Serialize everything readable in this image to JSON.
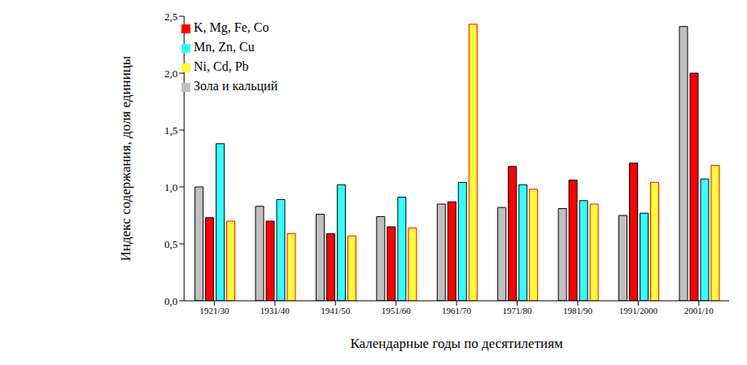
{
  "chart_data": {
    "type": "bar",
    "x_label": "Календарные годы по десятилетиям",
    "y_label": "Индекс  содержания, доля единицы",
    "categories": [
      "1921/30",
      "1931/40",
      "1941/50",
      "1951/60",
      "1961/70",
      "1971/80",
      "1981/90",
      "1991/2000",
      "2001/10"
    ],
    "series": [
      {
        "name": "Зола и кальций",
        "color": "#c0c0c0",
        "values": [
          1.0,
          0.83,
          0.76,
          0.74,
          0.85,
          0.82,
          0.81,
          0.75,
          2.41
        ]
      },
      {
        "name": "K, Mg, Fe, Co",
        "color": "#ff0000",
        "values": [
          0.73,
          0.7,
          0.59,
          0.65,
          0.87,
          1.18,
          1.06,
          1.21,
          2.0
        ]
      },
      {
        "name": "Mn, Zn, Cu",
        "color": "#33ffff",
        "values": [
          1.38,
          0.89,
          1.02,
          0.91,
          1.04,
          1.02,
          0.88,
          0.77,
          1.07
        ]
      },
      {
        "name": "Ni, Cd, Pb",
        "color": "#ffff33",
        "values": [
          0.7,
          0.59,
          0.57,
          0.64,
          2.43,
          0.98,
          0.85,
          1.04,
          1.19
        ]
      }
    ],
    "ylim": [
      0,
      2.5
    ],
    "yticks": [
      {
        "value": 0,
        "label": "0,0"
      },
      {
        "value": 0.5,
        "label": "0,5"
      },
      {
        "value": 1,
        "label": "1,0"
      },
      {
        "value": 1.5,
        "label": "1,5"
      },
      {
        "value": 2,
        "label": "2,0"
      },
      {
        "value": 2.5,
        "label": "2,5"
      }
    ],
    "grid": false,
    "legend": "top-left"
  }
}
